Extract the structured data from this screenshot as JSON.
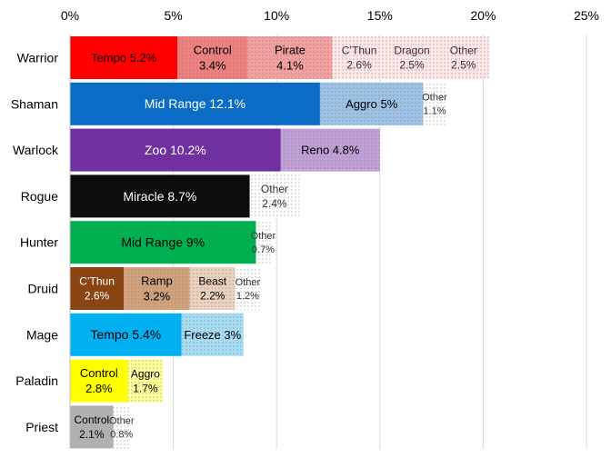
{
  "chart_data": {
    "type": "bar",
    "orientation": "horizontal",
    "stacked": true,
    "title": "",
    "xlabel": "",
    "ylabel": "",
    "xlim": [
      0,
      25
    ],
    "x_tick_labels": [
      "0%",
      "5%",
      "10%",
      "15%",
      "20%",
      "25%"
    ],
    "x_axis_position": "top",
    "grid": true,
    "legend": "none",
    "categories": [
      "Warrior",
      "Shaman",
      "Warlock",
      "Rogue",
      "Hunter",
      "Druid",
      "Mage",
      "Paladin",
      "Priest"
    ],
    "stacks": [
      {
        "category": "Warrior",
        "segments": [
          {
            "name": "Tempo",
            "value": 5.2,
            "label": "Tempo 5.2%",
            "color": "#ff0000",
            "pattern": "none",
            "text_color": "#000000"
          },
          {
            "name": "Control",
            "value": 3.4,
            "label": "Control|3.4%",
            "color": "#f08080",
            "pattern": "dots",
            "text_color": "#000000"
          },
          {
            "name": "Pirate",
            "value": 4.1,
            "label": "Pirate|4.1%",
            "color": "#f4a0a0",
            "pattern": "dots",
            "text_color": "#000000"
          },
          {
            "name": "C'Thun",
            "value": 2.6,
            "label": "C’Thun|2.6%",
            "color": "#fde6e6",
            "pattern": "dots",
            "text_color": "#333333"
          },
          {
            "name": "Dragon",
            "value": 2.5,
            "label": "Dragon|2.5%",
            "color": "#fde6e6",
            "pattern": "dots",
            "text_color": "#333333"
          },
          {
            "name": "Other",
            "value": 2.5,
            "label": "Other|2.5%",
            "color": "#fde6e6",
            "pattern": "dots",
            "text_color": "#333333"
          }
        ]
      },
      {
        "category": "Shaman",
        "segments": [
          {
            "name": "Mid Range",
            "value": 12.1,
            "label": "Mid Range 12.1%",
            "color": "#0a6cc4",
            "pattern": "none",
            "text_color": "#ffffff"
          },
          {
            "name": "Aggro",
            "value": 5.0,
            "label": "Aggro 5%",
            "color": "#9cc3e6",
            "pattern": "dots",
            "text_color": "#000000"
          },
          {
            "name": "Other",
            "value": 1.1,
            "label": "Other|1.1%",
            "color": "#ffffff",
            "pattern": "dots",
            "text_color": "#333333"
          }
        ]
      },
      {
        "category": "Warlock",
        "segments": [
          {
            "name": "Zoo",
            "value": 10.2,
            "label": "Zoo 10.2%",
            "color": "#7030a0",
            "pattern": "none",
            "text_color": "#ffffff"
          },
          {
            "name": "Reno",
            "value": 4.8,
            "label": "Reno 4.8%",
            "color": "#c1a0d8",
            "pattern": "dots",
            "text_color": "#000000"
          }
        ]
      },
      {
        "category": "Rogue",
        "segments": [
          {
            "name": "Miracle",
            "value": 8.7,
            "label": "Miracle 8.7%",
            "color": "#0d0d0d",
            "pattern": "none",
            "text_color": "#ffffff"
          },
          {
            "name": "Other",
            "value": 2.4,
            "label": "Other|2.4%",
            "color": "#ffffff",
            "pattern": "dots",
            "text_color": "#333333"
          }
        ]
      },
      {
        "category": "Hunter",
        "segments": [
          {
            "name": "Mid Range",
            "value": 9.0,
            "label": "Mid Range 9%",
            "color": "#00b050",
            "pattern": "none",
            "text_color": "#000000"
          },
          {
            "name": "Other",
            "value": 0.7,
            "label": "Other|0.7%",
            "color": "#ffffff",
            "pattern": "dots",
            "text_color": "#333333"
          }
        ]
      },
      {
        "category": "Druid",
        "segments": [
          {
            "name": "C'Thun",
            "value": 2.6,
            "label": "C’Thun|2.6%",
            "color": "#8b4513",
            "pattern": "none",
            "text_color": "#ffffff"
          },
          {
            "name": "Ramp",
            "value": 3.2,
            "label": "Ramp|3.2%",
            "color": "#d2a27c",
            "pattern": "dots",
            "text_color": "#000000"
          },
          {
            "name": "Beast",
            "value": 2.2,
            "label": "Beast|2.2%",
            "color": "#ecd2be",
            "pattern": "dots",
            "text_color": "#000000"
          },
          {
            "name": "Other",
            "value": 1.2,
            "label": "Other|1.2%",
            "color": "#ffffff",
            "pattern": "dots",
            "text_color": "#333333"
          }
        ]
      },
      {
        "category": "Mage",
        "segments": [
          {
            "name": "Tempo",
            "value": 5.4,
            "label": "Tempo 5.4%",
            "color": "#00b0f0",
            "pattern": "none",
            "text_color": "#000000"
          },
          {
            "name": "Freeze",
            "value": 3.0,
            "label": "Freeze 3%",
            "color": "#a6ddf5",
            "pattern": "dots",
            "text_color": "#000000"
          }
        ]
      },
      {
        "category": "Paladin",
        "segments": [
          {
            "name": "Control",
            "value": 2.8,
            "label": "Control|2.8%",
            "color": "#ffff00",
            "pattern": "none",
            "text_color": "#000000"
          },
          {
            "name": "Aggro",
            "value": 1.7,
            "label": "Aggro|1.7%",
            "color": "#ffff99",
            "pattern": "dots",
            "text_color": "#000000"
          }
        ]
      },
      {
        "category": "Priest",
        "segments": [
          {
            "name": "Control",
            "value": 2.1,
            "label": "Control|2.1%",
            "color": "#b0b0b0",
            "pattern": "none",
            "text_color": "#000000"
          },
          {
            "name": "Other",
            "value": 0.8,
            "label": "Other|0.8%",
            "color": "#ffffff",
            "pattern": "dots",
            "text_color": "#333333"
          }
        ]
      }
    ]
  }
}
